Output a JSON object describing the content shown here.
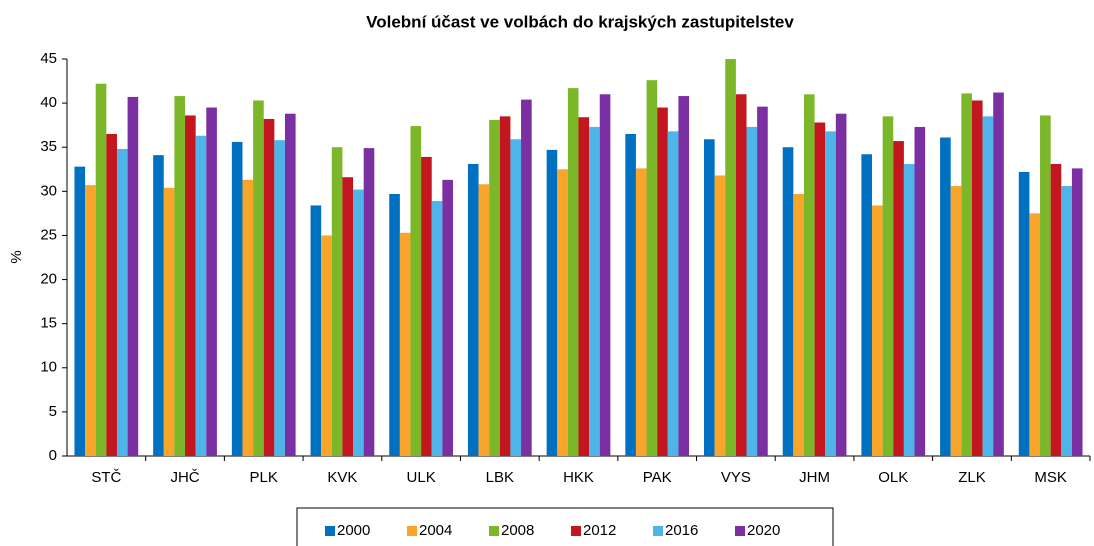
{
  "chart_data": {
    "type": "bar",
    "title": "Volební účast ve volbách do krajských zastupitelstev",
    "y_label": "%",
    "categories": [
      "STČ",
      "JHČ",
      "PLK",
      "KVK",
      "ULK",
      "LBK",
      "HKK",
      "PAK",
      "VYS",
      "JHM",
      "OLK",
      "ZLK",
      "MSK"
    ],
    "series": [
      {
        "name": "2000",
        "color": "#0070c0",
        "values": [
          32.8,
          34.1,
          35.6,
          28.4,
          29.7,
          33.1,
          34.7,
          36.5,
          35.9,
          35.0,
          34.2,
          36.1,
          32.2
        ]
      },
      {
        "name": "2004",
        "color": "#f7a52b",
        "values": [
          30.7,
          30.4,
          31.3,
          25.0,
          25.3,
          30.8,
          32.5,
          32.6,
          31.8,
          29.7,
          28.4,
          30.6,
          27.5
        ]
      },
      {
        "name": "2008",
        "color": "#7cb72a",
        "values": [
          42.2,
          40.8,
          40.3,
          35.0,
          37.4,
          38.1,
          41.7,
          42.6,
          45.0,
          41.0,
          38.5,
          41.1,
          38.6
        ]
      },
      {
        "name": "2012",
        "color": "#c3161e",
        "values": [
          36.5,
          38.6,
          38.2,
          31.6,
          33.9,
          38.5,
          38.4,
          39.5,
          41.0,
          37.8,
          35.7,
          40.3,
          33.1
        ]
      },
      {
        "name": "2016",
        "color": "#4fb4e8",
        "values": [
          34.8,
          36.3,
          35.8,
          30.2,
          28.9,
          35.9,
          37.3,
          36.8,
          37.3,
          36.8,
          33.1,
          38.5,
          30.6
        ]
      },
      {
        "name": "2020",
        "color": "#7a2fa2",
        "values": [
          40.7,
          39.5,
          38.8,
          34.9,
          31.3,
          40.4,
          41.0,
          40.8,
          39.6,
          38.8,
          37.3,
          41.2,
          32.6
        ]
      }
    ],
    "ylim": [
      0,
      45
    ],
    "yticks": [
      0,
      5,
      10,
      15,
      20,
      25,
      30,
      35,
      40,
      45
    ],
    "grid": false
  }
}
